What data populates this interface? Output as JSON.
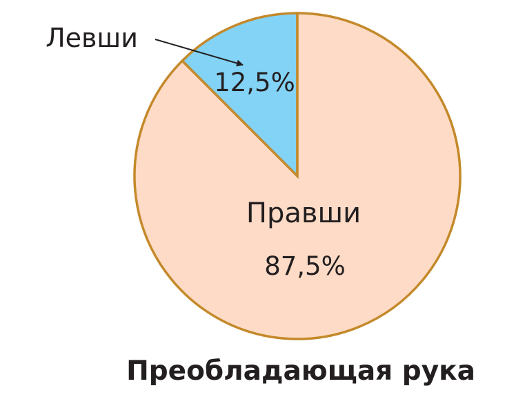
{
  "chart_data": {
    "type": "pie",
    "title": "Преобладающая рука",
    "slices": [
      {
        "label": "Левши",
        "value": 12.5,
        "value_label": "12,5%",
        "color": "#83d3f6"
      },
      {
        "label": "Правши",
        "value": 87.5,
        "value_label": "87,5%",
        "color": "#fddbc6"
      }
    ],
    "edge_color": "#c4892a",
    "text_color": "#231f20",
    "start_angle": "top, clockwise",
    "legend": "none",
    "annotations": [
      {
        "text": "Левши",
        "points_to": "Левши",
        "style": "arrow"
      }
    ]
  }
}
